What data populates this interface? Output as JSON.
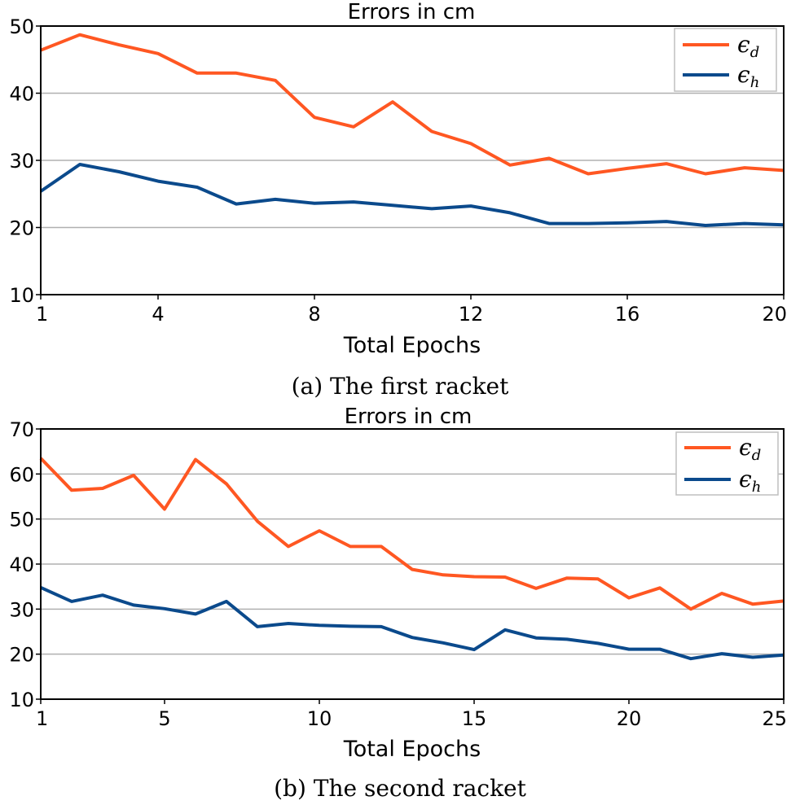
{
  "chart_data": [
    {
      "type": "line",
      "title": "Errors  in cm",
      "xlabel": "Total Epochs",
      "ylabel": "",
      "xlim": [
        1,
        20
      ],
      "ylim": [
        10,
        50
      ],
      "xticks": [
        1,
        4,
        8,
        12,
        16,
        20
      ],
      "yticks": [
        10,
        20,
        30,
        40,
        50
      ],
      "grid": "horizontal",
      "legend": "top-right",
      "caption": "(a) The first racket",
      "x": [
        1,
        2,
        3,
        4,
        5,
        6,
        7,
        8,
        9,
        10,
        11,
        12,
        13,
        14,
        15,
        16,
        17,
        18,
        19,
        20
      ],
      "series": [
        {
          "name": "ϵ",
          "sub": "d",
          "color": "#ff5722",
          "values": [
            46.4,
            48.7,
            47.2,
            45.9,
            43.0,
            43.0,
            41.9,
            36.4,
            35.0,
            38.7,
            34.3,
            32.5,
            29.3,
            30.3,
            28.0,
            28.8,
            29.5,
            28.0,
            28.9,
            28.5
          ]
        },
        {
          "name": "ϵ",
          "sub": "h",
          "color": "#0b4a8c",
          "values": [
            25.4,
            29.4,
            28.3,
            26.9,
            26.0,
            23.5,
            24.2,
            23.6,
            23.8,
            23.3,
            22.8,
            23.2,
            22.2,
            20.6,
            20.6,
            20.7,
            20.9,
            20.3,
            20.6,
            20.4
          ]
        }
      ]
    },
    {
      "type": "line",
      "title": "Errors in cm",
      "xlabel": "Total Epochs",
      "ylabel": "",
      "xlim": [
        1,
        25
      ],
      "ylim": [
        10,
        70
      ],
      "xticks": [
        1,
        5,
        10,
        15,
        20,
        25
      ],
      "yticks": [
        10,
        20,
        30,
        40,
        50,
        60,
        70
      ],
      "grid": "horizontal",
      "legend": "top-right",
      "caption": "(b) The second racket",
      "x": [
        1,
        2,
        3,
        4,
        5,
        6,
        7,
        8,
        9,
        10,
        11,
        12,
        13,
        14,
        15,
        16,
        17,
        18,
        19,
        20,
        21,
        22,
        23,
        24,
        25
      ],
      "series": [
        {
          "name": "ϵ",
          "sub": "d",
          "color": "#ff5722",
          "values": [
            63.5,
            56.4,
            56.8,
            59.7,
            52.2,
            63.2,
            57.8,
            49.5,
            43.9,
            47.4,
            43.9,
            43.9,
            38.8,
            37.6,
            37.2,
            37.1,
            34.6,
            36.9,
            36.7,
            32.5,
            34.7,
            30.0,
            33.5,
            31.1,
            31.8
          ]
        },
        {
          "name": "ϵ",
          "sub": "h",
          "color": "#0b4a8c",
          "values": [
            34.8,
            31.7,
            33.1,
            30.9,
            30.1,
            28.9,
            31.7,
            26.1,
            26.8,
            26.4,
            26.2,
            26.1,
            23.7,
            22.5,
            21.0,
            25.4,
            23.6,
            23.3,
            22.4,
            21.1,
            21.1,
            19.0,
            20.1,
            19.3,
            19.8
          ]
        }
      ]
    }
  ]
}
